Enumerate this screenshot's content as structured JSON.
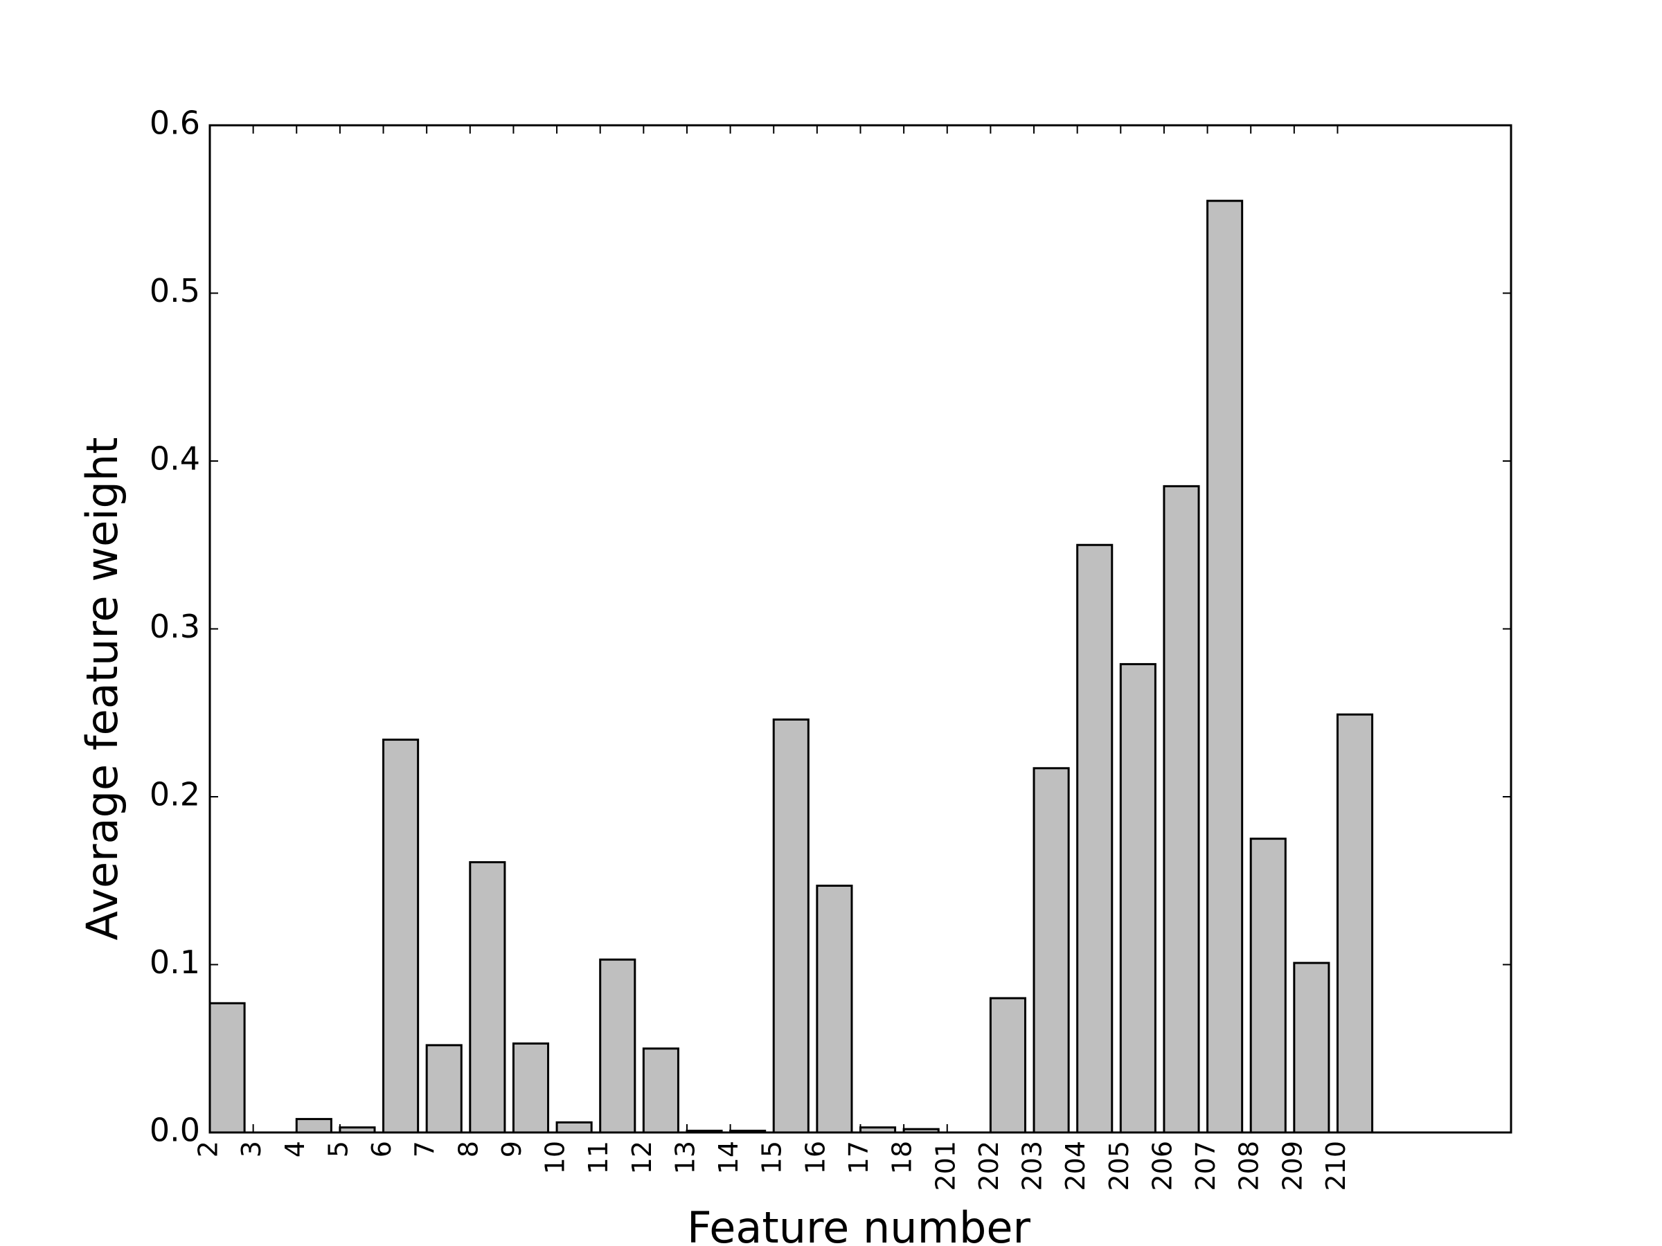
{
  "chart_data": {
    "type": "bar",
    "x_label": "Feature number",
    "y_label": "Average feature weight",
    "categories": [
      "2",
      "3",
      "4",
      "5",
      "6",
      "7",
      "8",
      "9",
      "10",
      "11",
      "12",
      "13",
      "14",
      "15",
      "16",
      "17",
      "18",
      "201",
      "202",
      "203",
      "204",
      "205",
      "206",
      "207",
      "208",
      "209",
      "210"
    ],
    "values": [
      0.077,
      0,
      0.008,
      0.003,
      0.234,
      0.052,
      0.161,
      0.053,
      0.006,
      0.103,
      0.05,
      0.001,
      0.001,
      0.246,
      0.147,
      0.003,
      0.002,
      0,
      0.08,
      0.217,
      0.35,
      0.279,
      0.385,
      0.555,
      0.175,
      0.101,
      0.249
    ],
    "color": "#bfbfbf",
    "ylim": [
      0,
      0.6
    ],
    "yticks": [
      {
        "value": 0,
        "label": "0.0"
      },
      0.1,
      0.2,
      0.3,
      0.4,
      0.5,
      0.6
    ],
    "grid": false
  }
}
